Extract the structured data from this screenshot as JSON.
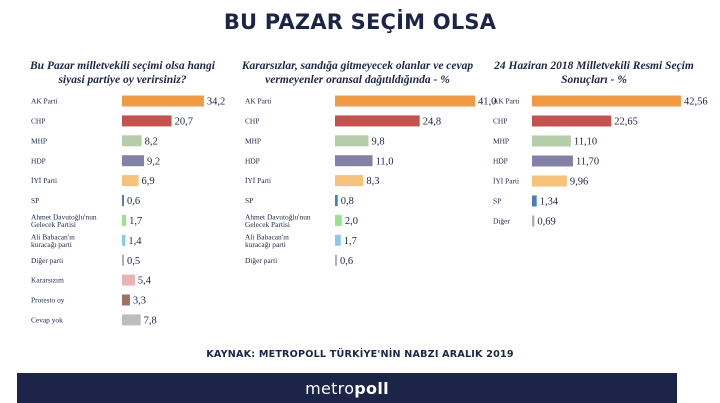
{
  "title": "BU PAZAR SEÇİM OLSA",
  "source": "KAYNAK: METROPOLL TÜRKİYE'NİN NABZI ARALIK 2019",
  "logo": {
    "part1": "metro",
    "part2": "poll"
  },
  "colors": {
    "ak_parti": "#ef9a45",
    "chp": "#c25350",
    "mhp": "#b5cda8",
    "hdp": "#8381a6",
    "iyi_parti": "#f5c27c",
    "sp": "#4e7fb3",
    "gelecek": "#96e58a",
    "babacan": "#8ec7ea",
    "diger": "#b0b0b0",
    "kararsizim": "#e8b3b7",
    "protesto": "#9e7264",
    "cevap_yok": "#bdbdbd",
    "footer": "#1c2547"
  },
  "chart_data": [
    {
      "type": "bar",
      "orientation": "horizontal",
      "title": "Bu Pazar milletvekili seçimi olsa hangi siyasi partiye oy verirsiniz?",
      "categories": [
        "AK Parti",
        "CHP",
        "MHP",
        "HDP",
        "İYİ Parti",
        "SP",
        "Ahmet Davutoğlu'nun Gelecek Partisi",
        "Ali Babacan'ın kuracağı parti",
        "Diğer parti",
        "Kararsızım",
        "Protesto oy",
        "Cevap yok"
      ],
      "values": [
        34.2,
        20.7,
        8.2,
        9.2,
        6.9,
        0.6,
        1.7,
        1.4,
        0.5,
        5.4,
        3.3,
        7.8
      ],
      "value_labels": [
        "34,2",
        "20,7",
        "8,2",
        "9,2",
        "6,9",
        "0,6",
        "1,7",
        "1,4",
        "0,5",
        "5,4",
        "3,3",
        "7,8"
      ],
      "color_keys": [
        "ak_parti",
        "chp",
        "mhp",
        "hdp",
        "iyi_parti",
        "sp",
        "gelecek",
        "babacan",
        "diger",
        "kararsizim",
        "protesto",
        "cevap_yok"
      ]
    },
    {
      "type": "bar",
      "orientation": "horizontal",
      "title": "Kararsızlar, sandığa gitmeyecek olanlar ve cevap vermeyenler oransal dağıtıldığında - %",
      "categories": [
        "AK Parti",
        "CHP",
        "MHP",
        "HDP",
        "İYİ Parti",
        "SP",
        "Ahmet Davutoğlu'nun Gelecek Partisi",
        "Ali Babacan'ın kuracağı parti",
        "Diğer parti"
      ],
      "values": [
        41.0,
        24.8,
        9.8,
        11.0,
        8.3,
        0.8,
        2.0,
        1.7,
        0.6
      ],
      "value_labels": [
        "41,0",
        "24,8",
        "9,8",
        "11,0",
        "8,3",
        "0,8",
        "2,0",
        "1,7",
        "0,6"
      ],
      "color_keys": [
        "ak_parti",
        "chp",
        "mhp",
        "hdp",
        "iyi_parti",
        "sp",
        "gelecek",
        "babacan",
        "diger"
      ]
    },
    {
      "type": "bar",
      "orientation": "horizontal",
      "title": "24 Haziran 2018 Milletvekili Resmi Seçim Sonuçları - %",
      "categories": [
        "AK Parti",
        "CHP",
        "MHP",
        "HDP",
        "İYİ Parti",
        "SP",
        "Diğer"
      ],
      "values": [
        42.56,
        22.65,
        11.1,
        11.7,
        9.96,
        1.34,
        0.69
      ],
      "value_labels": [
        "42,56",
        "22,65",
        "11,10",
        "11,70",
        "9,96",
        "1,34",
        "0,69"
      ],
      "color_keys": [
        "ak_parti",
        "chp",
        "mhp",
        "hdp",
        "iyi_parti",
        "sp",
        "diger"
      ]
    }
  ]
}
